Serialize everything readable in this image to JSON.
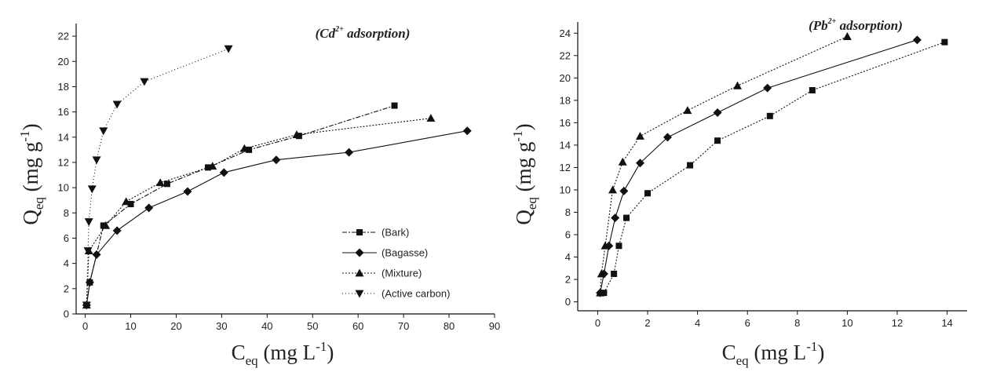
{
  "chart_data": [
    {
      "type": "line",
      "annotation": {
        "base": "(Cd",
        "sup": "2+",
        "rest": " adsorption)"
      },
      "xlabel": {
        "main": "C",
        "sub": "eq",
        "rest": " (mg L",
        "sup": "-1",
        "close": ")"
      },
      "ylabel": {
        "main": "Q",
        "sub": "eq",
        "rest": " (mg g",
        "sup": "-1",
        "close": ")"
      },
      "xlim": [
        -2,
        90
      ],
      "ylim": [
        0,
        23
      ],
      "xticks": [
        0,
        10,
        20,
        30,
        40,
        50,
        60,
        70,
        80,
        90
      ],
      "yticks": [
        0,
        2,
        4,
        6,
        8,
        10,
        12,
        14,
        16,
        18,
        20,
        22
      ],
      "legend_position": "bottom-right",
      "series": [
        {
          "name": "(Bark)",
          "marker": "square",
          "dash": "6 2 2 2",
          "x": [
            0.3,
            1,
            4,
            10,
            18,
            27,
            36,
            47,
            68
          ],
          "y": [
            0.7,
            2.5,
            7.0,
            8.7,
            10.3,
            11.6,
            13.0,
            14.1,
            16.5
          ]
        },
        {
          "name": "(Bagasse)",
          "marker": "diamond",
          "dash": "",
          "x": [
            0.3,
            1,
            2.5,
            7,
            14,
            22.5,
            30.5,
            42,
            58,
            84
          ],
          "y": [
            0.7,
            2.5,
            4.7,
            6.6,
            8.4,
            9.7,
            11.2,
            12.2,
            12.8,
            14.5
          ]
        },
        {
          "name": "(Mixture)",
          "marker": "triangle-up",
          "dash": "2 2",
          "x": [
            0.3,
            0.8,
            4.5,
            9,
            16.5,
            28,
            35,
            46.5,
            76
          ],
          "y": [
            0.7,
            5.0,
            7.0,
            8.9,
            10.4,
            11.7,
            13.1,
            14.2,
            15.5
          ]
        },
        {
          "name": "(Active carbon)",
          "marker": "triangle-down",
          "dash": "1 3",
          "x": [
            0.3,
            0.6,
            0.8,
            1.5,
            2.5,
            4,
            7,
            13,
            31.5
          ],
          "y": [
            0.7,
            5.0,
            7.3,
            9.9,
            12.2,
            14.5,
            16.6,
            18.4,
            21.0
          ]
        }
      ]
    },
    {
      "type": "line",
      "annotation": {
        "base": "(Pb",
        "sup": "2+",
        "rest": " adsorption)"
      },
      "xlabel": {
        "main": "C",
        "sub": "eq",
        "rest": " (mg L",
        "sup": "-1",
        "close": ")"
      },
      "ylabel": {
        "main": "Q",
        "sub": "eq",
        "rest": " (mg g",
        "sup": "-1",
        "close": ")"
      },
      "xlim": [
        -0.8,
        14.8
      ],
      "ylim": [
        -0.8,
        25
      ],
      "xticks": [
        0,
        2,
        4,
        6,
        8,
        10,
        12,
        14
      ],
      "yticks": [
        0,
        2,
        4,
        6,
        8,
        10,
        12,
        14,
        16,
        18,
        20,
        22,
        24
      ],
      "series": [
        {
          "name": "(Bark)",
          "marker": "square",
          "dash": "2 2",
          "x": [
            0.25,
            0.65,
            0.85,
            1.15,
            2.0,
            3.7,
            4.8,
            6.9,
            8.6,
            13.9
          ],
          "y": [
            0.8,
            2.5,
            5.0,
            7.5,
            9.7,
            12.2,
            14.4,
            16.6,
            18.9,
            23.2
          ]
        },
        {
          "name": "(Bagasse)",
          "marker": "diamond",
          "dash": "",
          "x": [
            0.1,
            0.25,
            0.45,
            0.7,
            1.05,
            1.7,
            2.8,
            4.8,
            6.8,
            12.8
          ],
          "y": [
            0.8,
            2.5,
            5.0,
            7.5,
            9.9,
            12.4,
            14.7,
            16.9,
            19.1,
            23.4
          ]
        },
        {
          "name": "(Mixture)",
          "marker": "triangle-up",
          "dash": "2 2",
          "x": [
            0.1,
            0.15,
            0.3,
            0.6,
            1.0,
            1.7,
            3.6,
            5.6,
            10.0
          ],
          "y": [
            0.8,
            2.5,
            5.0,
            10.0,
            12.5,
            14.8,
            17.1,
            19.3,
            23.7
          ]
        }
      ]
    }
  ]
}
